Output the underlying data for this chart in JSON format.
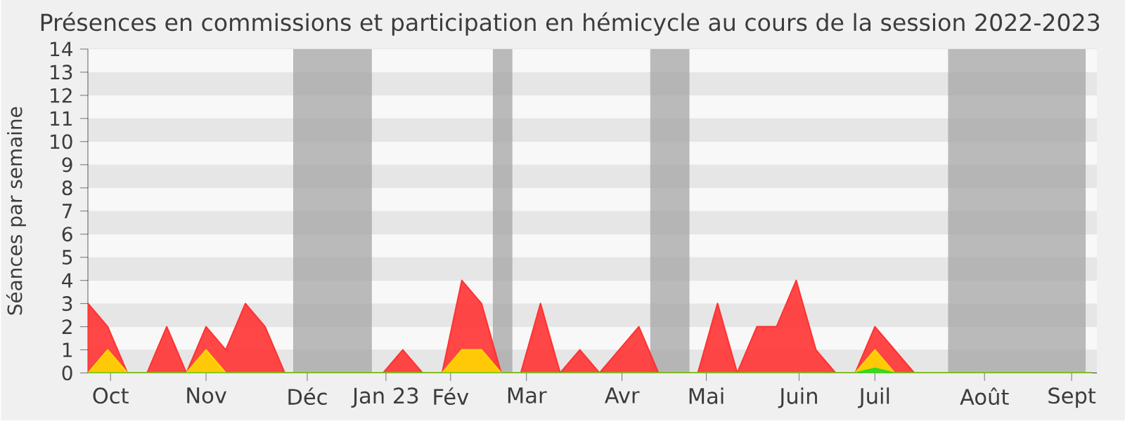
{
  "chart_data": {
    "type": "area",
    "title": "Présences en commissions et participation en hémicycle au cours de la session 2022-2023",
    "ylabel": "Séances par semaine",
    "x": [
      "2022-09-26",
      "2022-10-03",
      "2022-10-10",
      "2022-10-17",
      "2022-10-24",
      "2022-10-31",
      "2022-11-07",
      "2022-11-14",
      "2022-11-21",
      "2022-11-28",
      "2022-12-05",
      "2022-12-12",
      "2022-12-19",
      "2022-12-26",
      "2023-01-02",
      "2023-01-09",
      "2023-01-16",
      "2023-01-23",
      "2023-01-30",
      "2023-02-06",
      "2023-02-13",
      "2023-02-20",
      "2023-02-27",
      "2023-03-06",
      "2023-03-13",
      "2023-03-20",
      "2023-03-27",
      "2023-04-03",
      "2023-04-10",
      "2023-04-17",
      "2023-04-24",
      "2023-05-01",
      "2023-05-08",
      "2023-05-15",
      "2023-05-22",
      "2023-05-29",
      "2023-06-05",
      "2023-06-12",
      "2023-06-19",
      "2023-06-26",
      "2023-07-03",
      "2023-07-10",
      "2023-07-17",
      "2023-07-24",
      "2023-07-31",
      "2023-08-07",
      "2023-08-14",
      "2023-08-21",
      "2023-08-28",
      "2023-09-04",
      "2023-09-11",
      "2023-09-18"
    ],
    "series": [
      {
        "color": "#ff3333",
        "values": [
          3,
          2,
          0,
          0,
          2,
          0,
          2,
          1,
          3,
          2,
          0,
          0,
          0,
          0,
          0,
          0,
          1,
          0,
          0,
          4,
          3,
          0,
          0,
          3,
          0,
          1,
          0,
          1,
          2,
          0,
          0,
          0,
          3,
          0,
          2,
          2,
          4,
          1,
          0,
          0,
          2,
          1,
          0,
          0,
          0,
          0,
          0,
          0,
          0,
          0,
          0,
          0
        ]
      },
      {
        "color": "#ffd700",
        "values": [
          0,
          1,
          0,
          0,
          0,
          0,
          1,
          0,
          0,
          0,
          0,
          0,
          0,
          0,
          0,
          0,
          0,
          0,
          0,
          1,
          1,
          0,
          0,
          0,
          0,
          0,
          0,
          0,
          0,
          0,
          0,
          0,
          0,
          0,
          0,
          0,
          0,
          0,
          0,
          0,
          1,
          0,
          0,
          0,
          0,
          0,
          0,
          0,
          0,
          0,
          0,
          0
        ]
      },
      {
        "color": "#22dd22",
        "values": [
          0,
          0,
          0,
          0,
          0,
          0,
          0,
          0,
          0,
          0,
          0,
          0,
          0,
          0,
          0,
          0,
          0,
          0,
          0,
          0,
          0,
          0,
          0,
          0,
          0,
          0,
          0,
          0,
          0,
          0,
          0,
          0,
          0,
          0,
          0,
          0,
          0,
          0,
          0,
          0,
          0.2,
          0,
          0,
          0,
          0,
          0,
          0,
          0,
          0,
          0,
          0,
          0
        ]
      }
    ],
    "xlim": [
      "2022-09-26",
      "2023-09-20"
    ],
    "ylim": [
      0,
      14
    ],
    "xticks": [
      {
        "value": "2022-10-04",
        "label": "Oct"
      },
      {
        "value": "2022-11-07",
        "label": "Nov"
      },
      {
        "value": "2022-12-13",
        "label": "Déc"
      },
      {
        "value": "2023-01-10",
        "label": "Jan 23"
      },
      {
        "value": "2023-02-02",
        "label": "Fév"
      },
      {
        "value": "2023-03-01",
        "label": "Mar"
      },
      {
        "value": "2023-04-04",
        "label": "Avr"
      },
      {
        "value": "2023-05-04",
        "label": "Mai"
      },
      {
        "value": "2023-06-06",
        "label": "Juin"
      },
      {
        "value": "2023-07-03",
        "label": "Juil"
      },
      {
        "value": "2023-08-11",
        "label": "Août"
      },
      {
        "value": "2023-09-11",
        "label": "Sept"
      }
    ],
    "yticks": [
      0,
      1,
      2,
      3,
      4,
      5,
      6,
      7,
      8,
      9,
      10,
      11,
      12,
      13,
      14
    ],
    "bands": [
      {
        "axis": "x",
        "from": "2022-12-08",
        "to": "2023-01-05",
        "color": "#a0a0a0"
      },
      {
        "axis": "x",
        "from": "2023-02-17",
        "to": "2023-02-24",
        "color": "#a0a0a0"
      },
      {
        "axis": "x",
        "from": "2023-04-14",
        "to": "2023-04-28",
        "color": "#a0a0a0"
      },
      {
        "axis": "x",
        "from": "2023-07-29",
        "to": "2023-09-16",
        "color": "#a0a0a0"
      }
    ],
    "grid": "y"
  }
}
